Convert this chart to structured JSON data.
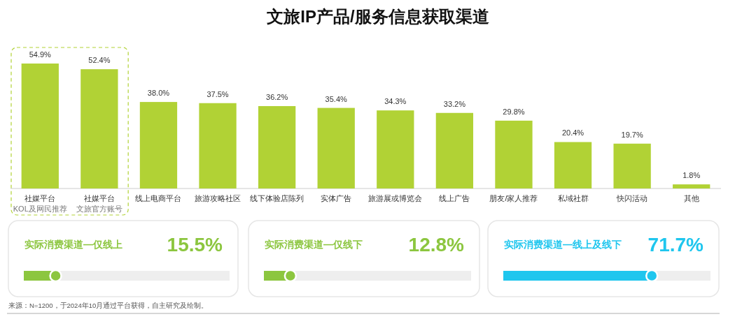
{
  "chart_data": [
    {
      "type": "bar",
      "title": "文旅IP产品/服务信息获取渠道",
      "categories": [
        "社媒平台KOL及网民推荐",
        "社媒平台文旅官方账号",
        "线上电商平台",
        "旅游攻略社区",
        "线下体验店陈列",
        "实体广告",
        "旅游展或博览会",
        "线上广告",
        "朋友/家人推荐",
        "私域社群",
        "快闪活动",
        "其他"
      ],
      "values": [
        54.9,
        52.4,
        38.0,
        37.5,
        36.2,
        35.4,
        34.3,
        33.2,
        29.8,
        20.4,
        19.7,
        1.8
      ],
      "value_labels": [
        "54.9%",
        "52.4%",
        "38.0%",
        "37.5%",
        "36.2%",
        "35.4%",
        "34.3%",
        "33.2%",
        "29.8%",
        "20.4%",
        "19.7%",
        "1.8%"
      ],
      "color": "#b1d235",
      "tick_labels": false,
      "annotations": [
        "来源：N=1200，于2024年10月通过平台获得，自主研究及绘制。"
      ]
    },
    {
      "type": "other",
      "title": "实际消费渠道—仅线上",
      "values": [
        15.5
      ],
      "value_labels": [
        "15.5%"
      ],
      "color": "#8cc63f"
    },
    {
      "type": "other",
      "title": "实际消费渠道—仅线下",
      "values": [
        12.8
      ],
      "value_labels": [
        "12.8%"
      ],
      "color": "#8cc63f"
    },
    {
      "type": "other",
      "title": "实际消费渠道—线上及线下",
      "values": [
        71.7
      ],
      "value_labels": [
        "71.7%"
      ],
      "color": "#1fc6ee"
    }
  ]
}
